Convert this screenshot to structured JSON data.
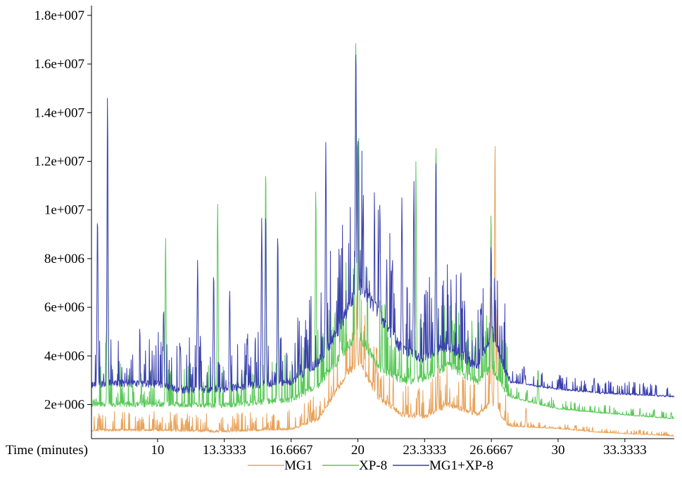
{
  "chart_data": {
    "type": "line",
    "title": "",
    "xlabel": "Time (minutes)",
    "ylabel": "",
    "xlim": [
      6.7,
      35.8
    ],
    "ylim": [
      600000,
      18400000
    ],
    "x_ticks": [
      10,
      13.3333,
      16.6667,
      20,
      23.3333,
      26.6667,
      30,
      33.3333
    ],
    "x_tick_labels": [
      "10",
      "13.3333",
      "16.6667",
      "20",
      "23.3333",
      "26.6667",
      "30",
      "33.3333"
    ],
    "y_ticks": [
      2000000,
      4000000,
      6000000,
      8000000,
      10000000,
      12000000,
      14000000,
      16000000,
      18000000
    ],
    "y_tick_labels": [
      "2e+006",
      "4e+006",
      "6e+006",
      "8e+006",
      "1e+007",
      "1.2e+007",
      "1.4e+007",
      "1.6e+007",
      "1.8e+007"
    ],
    "grid": false,
    "legend_position": "bottom",
    "series": [
      {
        "name": "MG1",
        "color": "#E8A25A",
        "baseline": [
          [
            6.7,
            900000
          ],
          [
            10.0,
            900000
          ],
          [
            13.3,
            850000
          ],
          [
            16.7,
            950000
          ],
          [
            18.0,
            1300000
          ],
          [
            19.2,
            2800000
          ],
          [
            20.0,
            3600000
          ],
          [
            21.0,
            2200000
          ],
          [
            22.2,
            1500000
          ],
          [
            23.3,
            1400000
          ],
          [
            24.5,
            1900000
          ],
          [
            26.0,
            1500000
          ],
          [
            26.7,
            2000000
          ],
          [
            27.5,
            1100000
          ],
          [
            30.0,
            1000000
          ],
          [
            32.0,
            850000
          ],
          [
            35.8,
            700000
          ]
        ],
        "peaks": [
          [
            19.95,
            6500000
          ],
          [
            20.1,
            4800000
          ],
          [
            24.0,
            3600000
          ],
          [
            26.65,
            7000000
          ],
          [
            26.85,
            13000000
          ],
          [
            26.95,
            6000000
          ],
          [
            28.4,
            1900000
          ]
        ]
      },
      {
        "name": "XP-8",
        "color": "#58C858",
        "baseline": [
          [
            6.7,
            1900000
          ],
          [
            10.0,
            1900000
          ],
          [
            13.3,
            1850000
          ],
          [
            16.7,
            2100000
          ],
          [
            18.0,
            2600000
          ],
          [
            19.2,
            3800000
          ],
          [
            20.0,
            4700000
          ],
          [
            21.0,
            3400000
          ],
          [
            22.2,
            2800000
          ],
          [
            23.3,
            2900000
          ],
          [
            24.5,
            3400000
          ],
          [
            26.0,
            2800000
          ],
          [
            26.7,
            3300000
          ],
          [
            27.5,
            2300000
          ],
          [
            30.0,
            1800000
          ],
          [
            32.0,
            1650000
          ],
          [
            35.8,
            1400000
          ]
        ],
        "peaks": [
          [
            7.5,
            12000000
          ],
          [
            10.4,
            9000000
          ],
          [
            13.0,
            10400000
          ],
          [
            15.4,
            12000000
          ],
          [
            16.0,
            8800000
          ],
          [
            17.9,
            11000000
          ],
          [
            19.9,
            17500000
          ],
          [
            20.05,
            13000000
          ],
          [
            22.9,
            12000000
          ],
          [
            23.9,
            13000000
          ],
          [
            26.65,
            10000000
          ],
          [
            29.0,
            3500000
          ]
        ]
      },
      {
        "name": "MG1+XP-8",
        "color": "#3A3FAE",
        "baseline": [
          [
            6.7,
            2700000
          ],
          [
            10.0,
            2700000
          ],
          [
            11.0,
            2450000
          ],
          [
            13.3,
            2500000
          ],
          [
            16.7,
            2800000
          ],
          [
            18.0,
            3500000
          ],
          [
            19.2,
            5000000
          ],
          [
            20.0,
            6600000
          ],
          [
            21.0,
            5500000
          ],
          [
            22.2,
            4000000
          ],
          [
            23.3,
            3700000
          ],
          [
            24.5,
            4200000
          ],
          [
            26.0,
            3300000
          ],
          [
            26.7,
            4700000
          ],
          [
            27.5,
            2900000
          ],
          [
            30.0,
            2600000
          ],
          [
            32.0,
            2450000
          ],
          [
            35.8,
            2300000
          ]
        ],
        "peaks": [
          [
            7.0,
            9900000
          ],
          [
            7.5,
            14800000
          ],
          [
            10.3,
            6000000
          ],
          [
            12.0,
            8000000
          ],
          [
            12.8,
            7500000
          ],
          [
            13.6,
            6800000
          ],
          [
            15.2,
            9700000
          ],
          [
            15.4,
            10100000
          ],
          [
            16.0,
            9100000
          ],
          [
            18.4,
            12800000
          ],
          [
            19.9,
            16900000
          ],
          [
            20.0,
            13200000
          ],
          [
            21.1,
            10300000
          ],
          [
            22.2,
            10500000
          ],
          [
            22.8,
            11200000
          ],
          [
            23.9,
            12300000
          ],
          [
            26.65,
            8600000
          ],
          [
            28.3,
            3600000
          ],
          [
            31.8,
            3100000
          ]
        ]
      }
    ]
  }
}
